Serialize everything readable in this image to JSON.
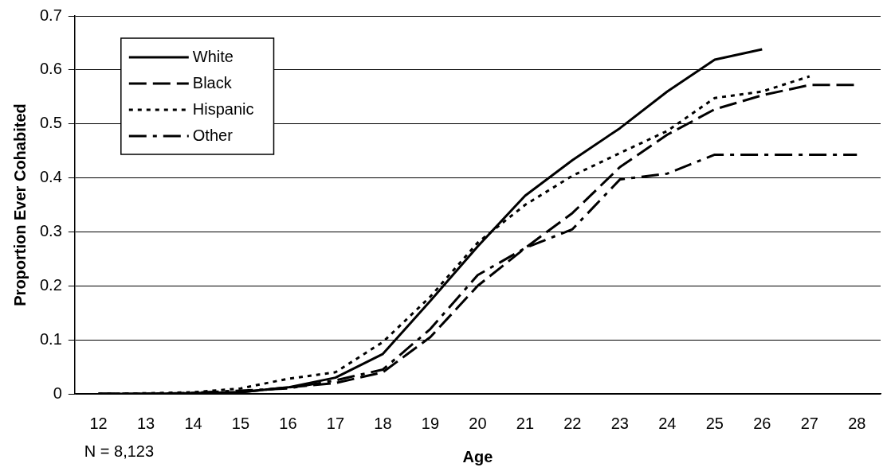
{
  "chart_data": {
    "type": "line",
    "xlabel": "Age",
    "ylabel": "Proportion Ever Cohabited",
    "categories": [
      "12",
      "13",
      "14",
      "15",
      "16",
      "17",
      "18",
      "19",
      "20",
      "21",
      "22",
      "23",
      "24",
      "25",
      "26",
      "27",
      "28"
    ],
    "series": [
      {
        "name": "White",
        "color": "#000000",
        "line_style": "solid",
        "values": [
          0,
          0,
          0.001,
          0.003,
          0.012,
          0.03,
          0.074,
          0.172,
          0.273,
          0.367,
          0.433,
          0.492,
          0.56,
          0.619,
          0.638,
          null,
          null
        ]
      },
      {
        "name": "Black",
        "color": "#000000",
        "line_style": "dashed",
        "values": [
          0,
          0,
          0.001,
          0.003,
          0.012,
          0.02,
          0.04,
          0.105,
          0.2,
          0.27,
          0.335,
          0.42,
          0.48,
          0.527,
          0.553,
          0.572,
          0.572
        ]
      },
      {
        "name": "Hispanic",
        "color": "#000000",
        "line_style": "dotted",
        "values": [
          0,
          0.001,
          0.003,
          0.01,
          0.028,
          0.04,
          0.096,
          0.18,
          0.28,
          0.35,
          0.404,
          0.446,
          0.487,
          0.548,
          0.56,
          0.588,
          null
        ]
      },
      {
        "name": "Other",
        "color": "#000000",
        "line_style": "dashdot",
        "values": [
          0,
          0,
          0.002,
          0.006,
          0.01,
          0.025,
          0.045,
          0.12,
          0.22,
          0.27,
          0.305,
          0.397,
          0.408,
          0.443,
          0.443,
          0.443,
          0.443
        ]
      }
    ],
    "ylim": [
      0,
      0.7
    ],
    "yticks": [
      0,
      0.1,
      0.2,
      0.3,
      0.4,
      0.5,
      0.6,
      0.7
    ],
    "grid": "y",
    "legend": "top left",
    "marker": "none",
    "annotations": [
      "N = 8,123"
    ]
  }
}
